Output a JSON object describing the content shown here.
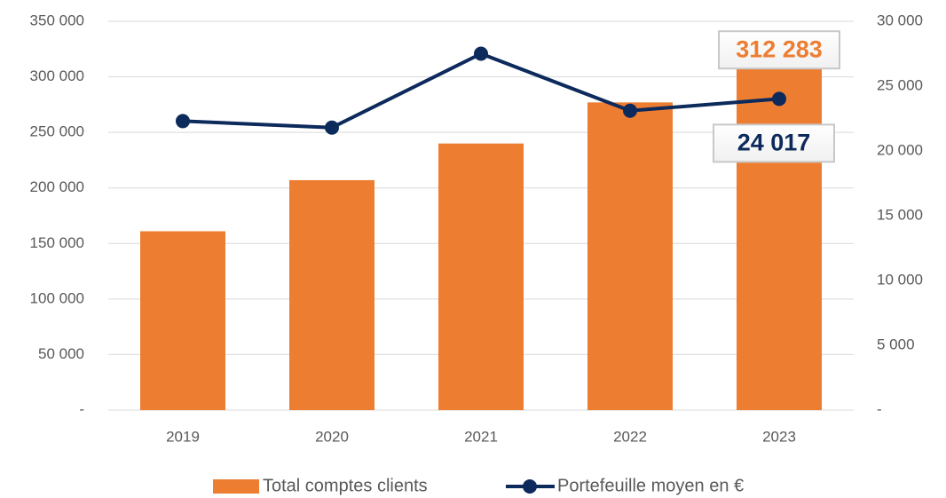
{
  "chart_data": {
    "type": "bar",
    "categories": [
      "2019",
      "2020",
      "2021",
      "2022",
      "2023"
    ],
    "series": [
      {
        "name": "Total comptes clients",
        "type": "bar",
        "axis": "y",
        "color": "#ed7d31",
        "values": [
          161000,
          207000,
          240000,
          277000,
          312283
        ],
        "value_labels": [
          null,
          null,
          null,
          null,
          "312 283"
        ]
      },
      {
        "name": "Portefeuille moyen en €",
        "type": "line",
        "axis": "y2",
        "color": "#0d2a5c",
        "values": [
          22300,
          21800,
          27500,
          23100,
          24017
        ],
        "value_labels": [
          null,
          null,
          null,
          null,
          "24 017"
        ]
      }
    ],
    "ylim": [
      0,
      350000
    ],
    "yticks": [
      {
        "value": 0,
        "label": "-"
      },
      {
        "value": 50000,
        "label": "50 000"
      },
      {
        "value": 100000,
        "label": "100 000"
      },
      {
        "value": 150000,
        "label": "150 000"
      },
      {
        "value": 200000,
        "label": "200 000"
      },
      {
        "value": 250000,
        "label": "250 000"
      },
      {
        "value": 300000,
        "label": "300 000"
      },
      {
        "value": 350000,
        "label": "350 000"
      }
    ],
    "y2lim": [
      0,
      30000
    ],
    "y2ticks": [
      {
        "value": 0,
        "label": "-"
      },
      {
        "value": 5000,
        "label": "5 000"
      },
      {
        "value": 10000,
        "label": "10 000"
      },
      {
        "value": 15000,
        "label": "15 000"
      },
      {
        "value": 20000,
        "label": "20 000"
      },
      {
        "value": 25000,
        "label": "25 000"
      },
      {
        "value": 30000,
        "label": "30 000"
      }
    ],
    "grid": true,
    "legend": "bottom"
  }
}
